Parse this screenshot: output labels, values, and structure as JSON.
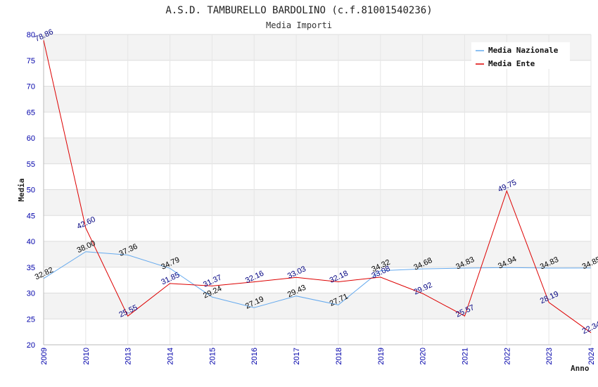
{
  "chart_data": {
    "type": "line",
    "title": "A.S.D. TAMBURELLO BARDOLINO (c.f.81001540236)",
    "subtitle": "Media Importi",
    "xlabel": "Anno",
    "ylabel": "Media",
    "ylim": [
      20,
      80
    ],
    "yticks": [
      "20",
      "25",
      "30",
      "35",
      "40",
      "45",
      "50",
      "55",
      "60",
      "65",
      "70",
      "75",
      "80"
    ],
    "categories": [
      "2009",
      "2010",
      "2013",
      "2014",
      "2015",
      "2016",
      "2017",
      "2018",
      "2019",
      "2020",
      "2021",
      "2022",
      "2023",
      "2024"
    ],
    "legend_position": "top-right",
    "series": [
      {
        "name": "Media Nazionale",
        "color": "#66aaee",
        "label_color": "#000000",
        "values": [
          32.82,
          38.0,
          37.36,
          34.79,
          29.24,
          27.19,
          29.43,
          27.71,
          34.32,
          34.68,
          34.83,
          34.94,
          34.83,
          34.85
        ],
        "labels": [
          "32.82",
          "38.00",
          "37.36",
          "34.79",
          "29.24",
          "27.19",
          "29.43",
          "27.71",
          "34.32",
          "34.68",
          "34.83",
          "34.94",
          "34.83",
          "34.85"
        ]
      },
      {
        "name": "Media Ente",
        "color": "#dd0000",
        "label_color": "#000080",
        "values": [
          78.86,
          42.6,
          25.55,
          31.85,
          31.37,
          32.16,
          33.03,
          32.18,
          33.08,
          29.92,
          25.57,
          49.75,
          28.19,
          22.34
        ],
        "labels": [
          "78.86",
          "42.60",
          "25.55",
          "31.85",
          "31.37",
          "32.16",
          "33.03",
          "32.18",
          "33.08",
          "29.92",
          "25.57",
          "49.75",
          "28.19",
          "22.34"
        ]
      }
    ]
  }
}
